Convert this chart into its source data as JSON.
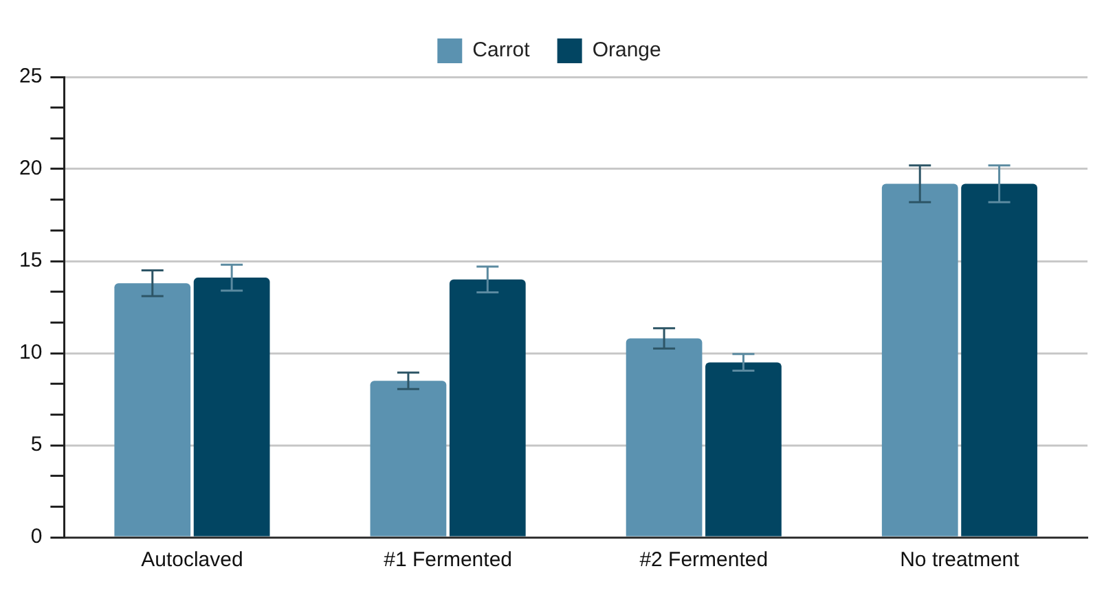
{
  "chart_data": {
    "type": "bar",
    "categories": [
      "Autoclaved",
      "#1 Fermented",
      "#2 Fermented",
      "No treatment"
    ],
    "series": [
      {
        "name": "Carrot",
        "color": "#5b92b0",
        "values": [
          13.8,
          8.5,
          10.8,
          19.2
        ],
        "errors": [
          0.7,
          0.45,
          0.55,
          1.0
        ]
      },
      {
        "name": "Orange",
        "color": "#024562",
        "values": [
          14.1,
          14.0,
          9.5,
          19.2
        ],
        "errors": [
          0.7,
          0.7,
          0.45,
          1.0
        ]
      }
    ],
    "ylim": [
      0,
      25
    ],
    "yticks": [
      0,
      {
        "value": 1.6667,
        "label": null
      },
      {
        "value": 3.3333,
        "label": null
      },
      5,
      {
        "value": 6.6667,
        "label": null
      },
      {
        "value": 8.3333,
        "label": null
      },
      10,
      {
        "value": 11.6667,
        "label": null
      },
      {
        "value": 13.3333,
        "label": null
      },
      15,
      {
        "value": 16.6667,
        "label": null
      },
      {
        "value": 18.3333,
        "label": null
      },
      20,
      {
        "value": 21.6667,
        "label": null
      },
      {
        "value": 23.3333,
        "label": null
      },
      25
    ],
    "grid": "y",
    "legend": "top"
  }
}
